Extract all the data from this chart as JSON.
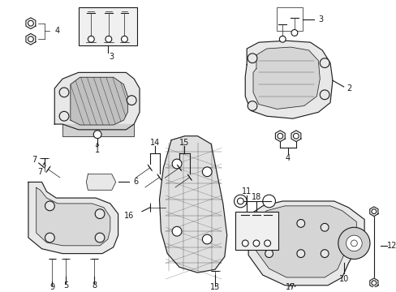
{
  "bg_color": "#ffffff",
  "line_color": "#1a1a1a",
  "fig_width": 4.89,
  "fig_height": 3.6,
  "dpi": 100,
  "gray_fill": "#e8e8e8",
  "dark_gray": "#c0c0c0",
  "light_fill": "#f2f2f2",
  "box_fill": "#f0f0f0"
}
